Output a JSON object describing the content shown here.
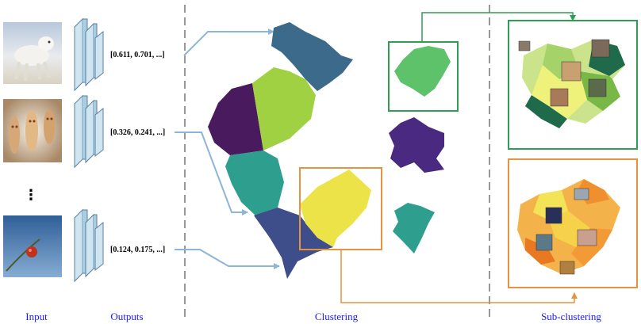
{
  "labels": {
    "input": "Input",
    "outputs": "Outputs",
    "clustering": "Clustering",
    "subclustering": "Sub-clustering"
  },
  "vectors": [
    "[0.611, 0.701, ...]",
    "[0.326, 0.241, ...]",
    "[0.124, 0.175, ...]"
  ],
  "ellipsis": "⋮",
  "inputs": [
    {
      "name": "white-wolf-photo",
      "colors": [
        "#c9d6e4",
        "#f1efe9",
        "#d8cdb8"
      ]
    },
    {
      "name": "cookie-faces-photo",
      "colors": [
        "#8a6b4e",
        "#f0dcc2",
        "#c99a6a"
      ]
    },
    {
      "name": "red-berry-photo",
      "colors": [
        "#3f6a9e",
        "#7ea5cf",
        "#c0321e"
      ]
    }
  ],
  "colors": {
    "label_blue": "#1a1aff",
    "arrow_blue": "#8fb4d9",
    "green_box": "#2e9e52",
    "orange_box": "#e8913e",
    "cluster_teal_blue": "#3b6a8a",
    "cluster_purple": "#3e2766",
    "cluster_dark_purple": "#4a1a5e",
    "cluster_lime": "#9fd143",
    "cluster_teal": "#2e9e8e",
    "cluster_green": "#5ec26a",
    "cluster_slate": "#3d4e8a",
    "cluster_yellow": "#ebe348",
    "network_fill": "#cfe6f2",
    "network_stroke": "#5b7f9a"
  }
}
